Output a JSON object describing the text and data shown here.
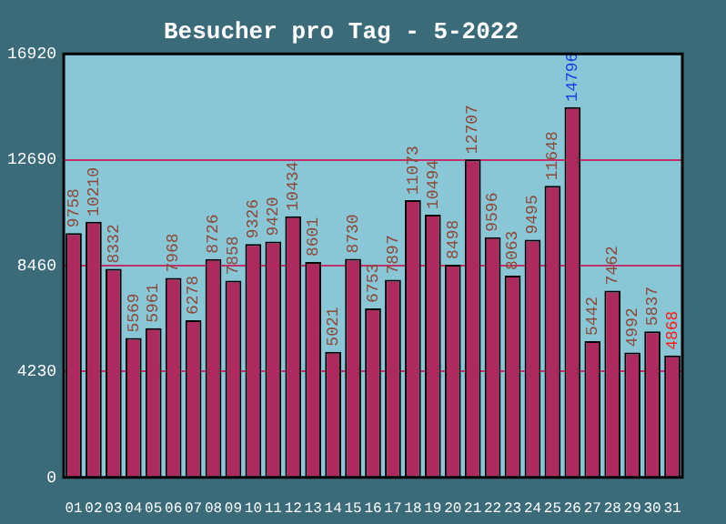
{
  "chart_data": {
    "type": "bar",
    "title": "Besucher pro Tag - 5-2022",
    "categories": [
      "01",
      "02",
      "03",
      "04",
      "05",
      "06",
      "07",
      "08",
      "09",
      "10",
      "11",
      "12",
      "13",
      "14",
      "15",
      "16",
      "17",
      "18",
      "19",
      "20",
      "21",
      "22",
      "23",
      "24",
      "25",
      "26",
      "27",
      "28",
      "29",
      "30",
      "31"
    ],
    "values": [
      9758,
      10210,
      8332,
      5569,
      5961,
      7968,
      6278,
      8726,
      7858,
      9326,
      9420,
      10434,
      8601,
      5021,
      8730,
      6753,
      7897,
      11073,
      10494,
      8498,
      12707,
      9596,
      8063,
      9495,
      11648,
      14796,
      5442,
      7462,
      4992,
      5837,
      4868
    ],
    "color": "#ad2a5f",
    "ylim": [
      0,
      16920
    ],
    "yticks": [
      0,
      4230,
      8460,
      12690,
      16920
    ],
    "grid": "y",
    "data_labels": true,
    "legend": false
  }
}
